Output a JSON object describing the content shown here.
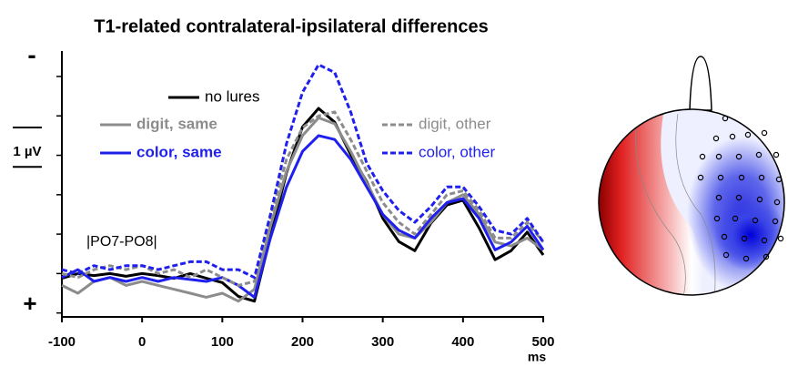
{
  "chart_data": {
    "type": "line",
    "title": "T1-related contralateral-ipsilateral differences",
    "annotation": "|PO7-PO8|",
    "y_top_label": "-",
    "y_bottom_label": "+",
    "scale_bar": {
      "label": "1 µV",
      "value": 1
    },
    "xlabel": "ms",
    "xlim": [
      -100,
      500
    ],
    "xticks": [
      -100,
      0,
      100,
      200,
      300,
      400,
      500
    ],
    "ylim": [
      1.1,
      -5.6
    ],
    "yticks": [
      1,
      0,
      -1,
      -2,
      -3,
      -4,
      -5
    ],
    "x": [
      -100,
      -80,
      -60,
      -40,
      -20,
      0,
      20,
      40,
      60,
      80,
      100,
      120,
      140,
      160,
      180,
      200,
      220,
      240,
      260,
      280,
      300,
      320,
      340,
      360,
      380,
      400,
      420,
      440,
      460,
      480,
      500
    ],
    "series": [
      {
        "name": "no lures",
        "color": "#000000",
        "dashed": false,
        "values": [
          0.12,
          0,
          0.05,
          0,
          0.07,
          0,
          0.05,
          0.12,
          0,
          0.12,
          0.23,
          0.58,
          0.7,
          -0.93,
          -2.56,
          -3.72,
          -4.19,
          -3.84,
          -3.02,
          -2.33,
          -1.4,
          -0.81,
          -0.58,
          -1.28,
          -1.74,
          -1.86,
          -1.16,
          -0.35,
          -0.58,
          -1.05,
          -0.47
        ]
      },
      {
        "name": "digit, same",
        "color": "#8c8c8c",
        "dashed": false,
        "values": [
          0.3,
          0.5,
          0.2,
          0.1,
          0.3,
          0.2,
          0.3,
          0.4,
          0.5,
          0.6,
          0.5,
          0.7,
          0.4,
          -1.2,
          -2.6,
          -3.5,
          -3.95,
          -3.8,
          -3.1,
          -2.3,
          -1.5,
          -1.0,
          -0.9,
          -1.3,
          -1.8,
          -2.0,
          -1.5,
          -0.8,
          -0.7,
          -0.9,
          -0.6
        ]
      },
      {
        "name": "color, same",
        "color": "#1f1fee",
        "dashed": false,
        "values": [
          0.1,
          -0.1,
          0.2,
          0.1,
          0.2,
          0.1,
          0.2,
          0.1,
          0.15,
          0.2,
          0.1,
          0.3,
          0.6,
          -0.9,
          -2.2,
          -3.1,
          -3.5,
          -3.4,
          -2.9,
          -2.2,
          -1.5,
          -1.1,
          -0.9,
          -1.4,
          -1.8,
          -1.9,
          -1.4,
          -0.6,
          -0.8,
          -1.2,
          -0.6
        ]
      },
      {
        "name": "digit, other",
        "color": "#8c8c8c",
        "dashed": true,
        "values": [
          0,
          0.1,
          -0.1,
          -0.2,
          -0.1,
          -0.2,
          0,
          -0.1,
          0.1,
          -0.1,
          0.1,
          0.3,
          0.2,
          -1.4,
          -2.9,
          -3.7,
          -4.0,
          -4.1,
          -3.4,
          -2.6,
          -1.8,
          -1.3,
          -1.0,
          -1.5,
          -2.0,
          -2.1,
          -1.6,
          -0.9,
          -0.9,
          -1.3,
          -0.8
        ]
      },
      {
        "name": "color, other",
        "color": "#1f1fee",
        "dashed": true,
        "values": [
          -0.1,
          0,
          -0.2,
          -0.1,
          -0.2,
          -0.2,
          -0.1,
          -0.2,
          -0.3,
          -0.3,
          -0.1,
          -0.1,
          0.1,
          -1.5,
          -3.3,
          -4.6,
          -5.3,
          -5.1,
          -4.1,
          -2.8,
          -2.1,
          -1.6,
          -1.3,
          -1.7,
          -2.2,
          -2.2,
          -1.7,
          -1.1,
          -1.0,
          -1.4,
          -0.8
        ]
      }
    ]
  }
}
